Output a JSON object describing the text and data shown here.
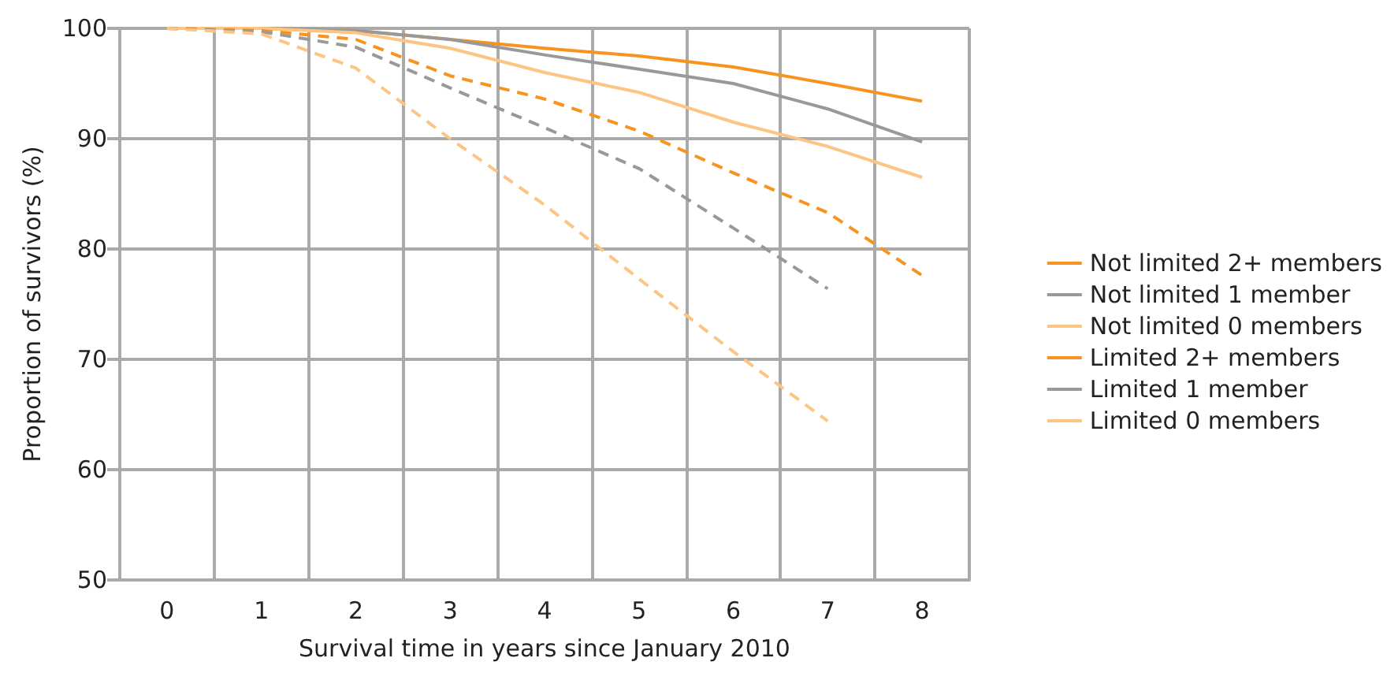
{
  "chart_data": {
    "type": "line",
    "xlabel": "Survival time in years since January 2010",
    "ylabel": "Proportion of survivors (%)",
    "categories": [
      "0",
      "1",
      "2",
      "3",
      "4",
      "5",
      "6",
      "7",
      "8"
    ],
    "ylim": [
      50,
      100
    ],
    "yticks": [
      50,
      60,
      70,
      80,
      90,
      100
    ],
    "grid": true,
    "legend": "right",
    "marker": "none",
    "series": [
      {
        "name": "Not limited 2+ members",
        "color": "#f7931e",
        "line_style": "solid",
        "values": [
          100,
          100,
          99.8,
          99,
          98.2,
          97.5,
          96.5,
          95,
          93.4
        ]
      },
      {
        "name": "Not limited 1 member",
        "color": "#999999",
        "line_style": "solid",
        "values": [
          100,
          100,
          99.8,
          99,
          97.6,
          96.3,
          95,
          92.7,
          89.7
        ]
      },
      {
        "name": "Not limited 0 members",
        "color": "#fdc583",
        "line_style": "solid",
        "values": [
          100,
          100,
          99.6,
          98.2,
          96,
          94.2,
          91.5,
          89.3,
          86.5
        ]
      },
      {
        "name": "Limited 2+ members",
        "color": "#f7931e",
        "line_style": "dashed",
        "values": [
          100,
          99.8,
          99,
          95.7,
          93.6,
          90.7,
          86.9,
          83.3,
          77.6
        ]
      },
      {
        "name": "Limited 1 member",
        "color": "#999999",
        "line_style": "dashed",
        "values": [
          100,
          99.7,
          98.3,
          94.6,
          91,
          87.3,
          81.9,
          76.4,
          null
        ]
      },
      {
        "name": "Limited 0 members",
        "color": "#fdc583",
        "line_style": "dashed",
        "values": [
          100,
          99.5,
          96.4,
          90,
          84,
          77.3,
          70.7,
          64.4,
          null
        ]
      }
    ]
  }
}
